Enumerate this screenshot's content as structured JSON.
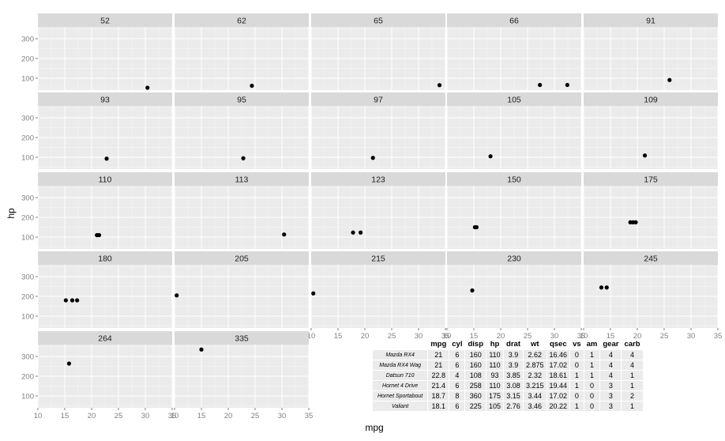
{
  "chart_data": {
    "type": "scatter",
    "facet_by": "hp",
    "xlabel": "mpg",
    "ylabel": "hp",
    "xlim": [
      10,
      35
    ],
    "ylim": [
      40,
      360
    ],
    "x_ticks": [
      "10",
      "15",
      "20",
      "25",
      "30",
      "35"
    ],
    "y_ticks": [
      "100",
      "200",
      "300"
    ],
    "grid": true,
    "panels": [
      {
        "label": "52",
        "points": [
          [
            30.4,
            52
          ]
        ]
      },
      {
        "label": "62",
        "points": [
          [
            24.4,
            62
          ]
        ]
      },
      {
        "label": "65",
        "points": [
          [
            33.9,
            65
          ]
        ]
      },
      {
        "label": "66",
        "points": [
          [
            27.3,
            66
          ],
          [
            32.4,
            66
          ]
        ]
      },
      {
        "label": "91",
        "points": [
          [
            26.0,
            91
          ]
        ]
      },
      {
        "label": "93",
        "points": [
          [
            22.8,
            93
          ]
        ]
      },
      {
        "label": "95",
        "points": [
          [
            22.8,
            95
          ]
        ]
      },
      {
        "label": "97",
        "points": [
          [
            21.5,
            97
          ]
        ]
      },
      {
        "label": "105",
        "points": [
          [
            18.1,
            105
          ]
        ]
      },
      {
        "label": "109",
        "points": [
          [
            21.4,
            109
          ]
        ]
      },
      {
        "label": "110",
        "points": [
          [
            21.0,
            110
          ],
          [
            21.0,
            110
          ],
          [
            21.4,
            110
          ]
        ]
      },
      {
        "label": "113",
        "points": [
          [
            30.4,
            113
          ]
        ]
      },
      {
        "label": "123",
        "points": [
          [
            19.2,
            123
          ],
          [
            17.8,
            123
          ]
        ]
      },
      {
        "label": "150",
        "points": [
          [
            15.5,
            150
          ],
          [
            15.2,
            150
          ]
        ]
      },
      {
        "label": "175",
        "points": [
          [
            18.7,
            175
          ],
          [
            19.2,
            175
          ],
          [
            19.7,
            175
          ]
        ]
      },
      {
        "label": "180",
        "points": [
          [
            16.4,
            180
          ],
          [
            17.3,
            180
          ],
          [
            15.2,
            180
          ]
        ]
      },
      {
        "label": "205",
        "points": [
          [
            10.4,
            205
          ]
        ]
      },
      {
        "label": "215",
        "points": [
          [
            10.4,
            215
          ]
        ]
      },
      {
        "label": "230",
        "points": [
          [
            14.7,
            230
          ]
        ]
      },
      {
        "label": "245",
        "points": [
          [
            14.3,
            245
          ],
          [
            13.3,
            245
          ]
        ]
      },
      {
        "label": "264",
        "points": [
          [
            15.8,
            264
          ]
        ]
      },
      {
        "label": "335",
        "points": [
          [
            15.0,
            335
          ]
        ]
      }
    ],
    "colors": {
      "panel_bg": "#ebebeb",
      "strip_bg": "#d9d9d9",
      "grid": "#ffffff",
      "point": "#000000"
    }
  },
  "table": {
    "columns": [
      "mpg",
      "cyl",
      "disp",
      "hp",
      "drat",
      "wt",
      "qsec",
      "vs",
      "am",
      "gear",
      "carb"
    ],
    "rows": [
      {
        "name": "Mazda RX4",
        "values": [
          "21",
          "6",
          "160",
          "110",
          "3.9",
          "2.62",
          "16.46",
          "0",
          "1",
          "4",
          "4"
        ]
      },
      {
        "name": "Mazda RX4 Wag",
        "values": [
          "21",
          "6",
          "160",
          "110",
          "3.9",
          "2.875",
          "17.02",
          "0",
          "1",
          "4",
          "4"
        ]
      },
      {
        "name": "Datsun 710",
        "values": [
          "22.8",
          "4",
          "108",
          "93",
          "3.85",
          "2.32",
          "18.61",
          "1",
          "1",
          "4",
          "1"
        ]
      },
      {
        "name": "Hornet 4 Drive",
        "values": [
          "21.4",
          "6",
          "258",
          "110",
          "3.08",
          "3.215",
          "19.44",
          "1",
          "0",
          "3",
          "1"
        ]
      },
      {
        "name": "Hornet Sportabout",
        "values": [
          "18.7",
          "8",
          "360",
          "175",
          "3.15",
          "3.44",
          "17.02",
          "0",
          "0",
          "3",
          "2"
        ]
      },
      {
        "name": "Valiant",
        "values": [
          "18.1",
          "6",
          "225",
          "105",
          "2.76",
          "3.46",
          "20.22",
          "1",
          "0",
          "3",
          "1"
        ]
      }
    ]
  }
}
